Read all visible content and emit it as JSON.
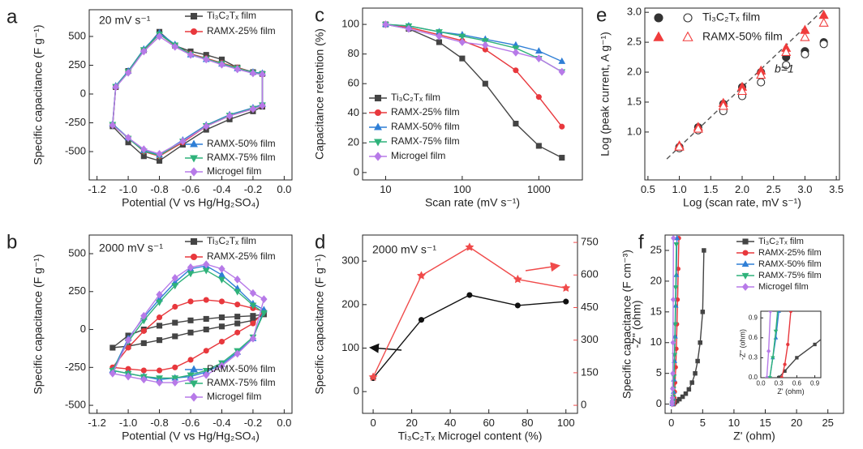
{
  "chart_data": [
    {
      "type": "line",
      "panel": "a",
      "closed": true,
      "annotation": "20 mV s⁻¹",
      "xlabel": "Potential (V vs Hg/Hg₂SO₄)",
      "ylabel": "Specific capacitance (F g⁻¹)",
      "xlim": [
        -1.25,
        0.05
      ],
      "ylim": [
        -746,
        732
      ],
      "xticks": [
        -1.2,
        {
          "value": -1,
          "label": "-1.0"
        },
        -0.8,
        -0.6,
        -0.4,
        -0.2,
        {
          "value": 0,
          "label": "0.0"
        }
      ],
      "yticks": [
        -500,
        -250,
        0,
        250,
        500
      ],
      "series": [
        {
          "name": "Ti₃C₂Tₓ film",
          "color": "#444444",
          "marker": "square",
          "x": [
            -1.1,
            -1.08,
            -1.0,
            -0.9,
            -0.8,
            -0.7,
            -0.6,
            -0.5,
            -0.4,
            -0.3,
            -0.2,
            -0.14,
            -0.14,
            -0.2,
            -0.35,
            -0.5,
            -0.65,
            -0.8,
            -0.9,
            -1.0
          ],
          "values": [
            -280,
            60,
            200,
            380,
            540,
            420,
            370,
            340,
            300,
            230,
            190,
            175,
            -110,
            -150,
            -220,
            -310,
            -440,
            -580,
            -540,
            -420
          ]
        },
        {
          "name": "RAMX-25% film",
          "color": "#e8383d",
          "marker": "circle",
          "x": [
            -1.1,
            -1.08,
            -1.0,
            -0.9,
            -0.8,
            -0.7,
            -0.6,
            -0.5,
            -0.4,
            -0.3,
            -0.2,
            -0.14,
            -0.14,
            -0.2,
            -0.35,
            -0.5,
            -0.65,
            -0.8,
            -0.9,
            -1.0
          ],
          "values": [
            -270,
            60,
            190,
            380,
            520,
            420,
            350,
            310,
            270,
            230,
            185,
            170,
            -100,
            -130,
            -190,
            -280,
            -420,
            -540,
            -500,
            -380
          ]
        },
        {
          "name": "RAMX-50% film",
          "color": "#2f7fd6",
          "marker": "triangle",
          "x": [
            -1.1,
            -1.08,
            -1.0,
            -0.9,
            -0.8,
            -0.7,
            -0.6,
            -0.5,
            -0.4,
            -0.3,
            -0.2,
            -0.14,
            -0.14,
            -0.2,
            -0.35,
            -0.5,
            -0.65,
            -0.8,
            -0.9,
            -1.0
          ],
          "values": [
            -260,
            70,
            200,
            390,
            530,
            430,
            340,
            300,
            260,
            220,
            190,
            180,
            -90,
            -120,
            -180,
            -270,
            -400,
            -530,
            -490,
            -380
          ]
        },
        {
          "name": "RAMX-75% film",
          "color": "#2fb27a",
          "marker": "triangle-down",
          "x": [
            -1.1,
            -1.08,
            -1.0,
            -0.9,
            -0.8,
            -0.7,
            -0.6,
            -0.5,
            -0.4,
            -0.3,
            -0.2,
            -0.14,
            -0.14,
            -0.2,
            -0.35,
            -0.5,
            -0.65,
            -0.8,
            -0.9,
            -1.0
          ],
          "values": [
            -265,
            65,
            195,
            385,
            520,
            425,
            345,
            305,
            265,
            225,
            185,
            175,
            -95,
            -125,
            -185,
            -275,
            -410,
            -535,
            -495,
            -385
          ]
        },
        {
          "name": "Microgel film",
          "color": "#b77ae8",
          "marker": "diamond",
          "x": [
            -1.1,
            -1.08,
            -1.0,
            -0.9,
            -0.8,
            -0.7,
            -0.6,
            -0.5,
            -0.4,
            -0.3,
            -0.2,
            -0.14,
            -0.14,
            -0.2,
            -0.35,
            -0.5,
            -0.65,
            -0.8,
            -0.9,
            -1.0
          ],
          "values": [
            -270,
            60,
            185,
            370,
            500,
            410,
            340,
            300,
            255,
            215,
            180,
            170,
            -100,
            -130,
            -190,
            -280,
            -410,
            -520,
            -480,
            -380
          ]
        }
      ]
    },
    {
      "type": "line",
      "panel": "b",
      "closed": true,
      "annotation": "2000 mV s⁻¹",
      "xlabel": "Potential (V vs Hg/Hg₂SO₄)",
      "ylabel": "Specific capacitance (F g⁻¹)",
      "xlim": [
        -1.25,
        0.05
      ],
      "ylim": [
        -553,
        623
      ],
      "xticks": [
        -1.2,
        {
          "value": -1,
          "label": "-1.0"
        },
        -0.8,
        -0.6,
        -0.4,
        -0.2,
        {
          "value": 0,
          "label": "0.0"
        }
      ],
      "yticks": [
        -500,
        -250,
        0,
        250,
        500
      ],
      "series": [
        {
          "name": "Ti₃C₂Tₓ film",
          "color": "#444444",
          "marker": "square",
          "x": [
            -1.1,
            -1.0,
            -0.9,
            -0.8,
            -0.7,
            -0.6,
            -0.5,
            -0.4,
            -0.3,
            -0.2,
            -0.13,
            -0.2,
            -0.3,
            -0.4,
            -0.5,
            -0.6,
            -0.7,
            -0.8,
            -0.9,
            -1.0
          ],
          "values": [
            -120,
            -40,
            0,
            25,
            45,
            60,
            70,
            80,
            85,
            90,
            100,
            60,
            40,
            20,
            0,
            -20,
            -45,
            -70,
            -90,
            -110
          ]
        },
        {
          "name": "RAMX-25% film",
          "color": "#e8383d",
          "marker": "circle",
          "x": [
            -1.1,
            -1.0,
            -0.9,
            -0.8,
            -0.7,
            -0.6,
            -0.5,
            -0.4,
            -0.3,
            -0.2,
            -0.13,
            -0.2,
            -0.3,
            -0.4,
            -0.5,
            -0.6,
            -0.7,
            -0.8,
            -0.9,
            -1.0
          ],
          "values": [
            -250,
            -120,
            -10,
            80,
            150,
            185,
            195,
            185,
            165,
            140,
            120,
            40,
            -20,
            -80,
            -140,
            -200,
            -250,
            -270,
            -270,
            -260
          ]
        },
        {
          "name": "RAMX-50% film",
          "color": "#2f7fd6",
          "marker": "triangle",
          "x": [
            -1.1,
            -1.0,
            -0.9,
            -0.8,
            -0.7,
            -0.6,
            -0.5,
            -0.4,
            -0.3,
            -0.2,
            -0.13,
            -0.2,
            -0.3,
            -0.4,
            -0.5,
            -0.6,
            -0.7,
            -0.8,
            -0.9,
            -1.0
          ],
          "values": [
            -270,
            -60,
            80,
            200,
            310,
            400,
            420,
            360,
            270,
            170,
            130,
            -60,
            -150,
            -230,
            -280,
            -310,
            -320,
            -330,
            -310,
            -290
          ]
        },
        {
          "name": "RAMX-75% film",
          "color": "#2fb27a",
          "marker": "triangle-down",
          "x": [
            -1.1,
            -1.0,
            -0.9,
            -0.8,
            -0.7,
            -0.6,
            -0.5,
            -0.4,
            -0.3,
            -0.2,
            -0.13,
            -0.2,
            -0.3,
            -0.4,
            -0.5,
            -0.6,
            -0.7,
            -0.8,
            -0.9,
            -1.0
          ],
          "values": [
            -270,
            -80,
            60,
            180,
            290,
            370,
            390,
            330,
            250,
            160,
            110,
            -50,
            -140,
            -220,
            -270,
            -300,
            -320,
            -320,
            -310,
            -290
          ]
        },
        {
          "name": "Microgel film",
          "color": "#b77ae8",
          "marker": "diamond",
          "x": [
            -1.1,
            -1.0,
            -0.9,
            -0.8,
            -0.7,
            -0.6,
            -0.5,
            -0.4,
            -0.3,
            -0.2,
            -0.13,
            -0.2,
            -0.3,
            -0.4,
            -0.5,
            -0.6,
            -0.7,
            -0.8,
            -0.9,
            -1.0
          ],
          "values": [
            -290,
            -70,
            90,
            230,
            340,
            410,
            430,
            400,
            330,
            240,
            200,
            -60,
            -160,
            -240,
            -300,
            -330,
            -350,
            -350,
            -330,
            -310
          ]
        }
      ]
    },
    {
      "type": "line",
      "panel": "c",
      "xlog": true,
      "xlabel": "Scan rate (mV s⁻¹)",
      "ylabel": "Capacitance retention (%)",
      "xlim": [
        5,
        3700
      ],
      "ylim": [
        -5,
        111
      ],
      "xticks": [
        10,
        100,
        1000
      ],
      "yticks": [
        0,
        20,
        40,
        60,
        80,
        100
      ],
      "x": [
        10,
        20,
        50,
        100,
        200,
        500,
        1000,
        2000
      ],
      "series": [
        {
          "name": "Ti₃C₂Tₓ film",
          "color": "#444444",
          "marker": "square",
          "values": [
            100,
            97,
            88,
            77,
            60,
            33,
            18,
            10
          ]
        },
        {
          "name": "RAMX-25% film",
          "color": "#e8383d",
          "marker": "circle",
          "values": [
            100,
            98,
            93,
            89,
            83,
            69,
            51,
            31
          ]
        },
        {
          "name": "RAMX-50% film",
          "color": "#2f7fd6",
          "marker": "triangle",
          "values": [
            100,
            99,
            95,
            93,
            90,
            86,
            82,
            75
          ]
        },
        {
          "name": "RAMX-75% film",
          "color": "#2fb27a",
          "marker": "triangle-down",
          "values": [
            100,
            99,
            95,
            92,
            89,
            84,
            77,
            68
          ]
        },
        {
          "name": "Microgel film",
          "color": "#b77ae8",
          "marker": "diamond",
          "values": [
            100,
            97,
            92,
            88,
            86,
            81,
            77,
            68
          ]
        }
      ]
    },
    {
      "type": "line",
      "panel": "d",
      "annotation": "2000 mV s⁻¹",
      "xlabel": "Ti₃C₂Tₓ Microgel content (%)",
      "ylabel": "Specific capacitance (F g⁻¹)",
      "y2label": "Specific capacitance (F cm⁻³)",
      "y2color": "#f04b4b",
      "xlim": [
        -5.5,
        106
      ],
      "ylim": [
        -50,
        360
      ],
      "y2lim": [
        -37,
        784
      ],
      "xticks": [
        0,
        20,
        40,
        60,
        80,
        100
      ],
      "yticks": [
        0,
        100,
        200,
        300
      ],
      "y2ticks": [
        0,
        150,
        300,
        450,
        600,
        750
      ],
      "x": [
        0,
        25,
        50,
        75,
        100
      ],
      "series": [
        {
          "color": "#111111",
          "marker": "circle",
          "values": [
            31,
            165,
            222,
            198,
            207
          ]
        },
        {
          "color": "#f04b4b",
          "marker": "star",
          "axis": "y2",
          "values": [
            130,
            597,
            728,
            580,
            540
          ]
        }
      ]
    },
    {
      "type": "scatter",
      "panel": "e",
      "xlabel": "Log (scan rate, mV s⁻¹)",
      "ylabel": "Log (peak current, A g⁻¹)",
      "xlim": [
        0.45,
        3.55
      ],
      "ylim": [
        0.2,
        3.07
      ],
      "xticks": [
        0.5,
        {
          "value": 1,
          "label": "1.0"
        },
        1.5,
        {
          "value": 2,
          "label": "2.0"
        },
        2.5,
        {
          "value": 3,
          "label": "3.0"
        },
        3.5
      ],
      "yticks": [
        {
          "value": 1,
          "label": "1.0"
        },
        1.5,
        {
          "value": 2,
          "label": "2.0"
        },
        2.5,
        {
          "value": 3,
          "label": "3.0"
        }
      ],
      "x": [
        1.0,
        1.3,
        1.7,
        2.0,
        2.3,
        2.7,
        3.0,
        3.3
      ],
      "reference": {
        "label": "b=1",
        "x": [
          0.8,
          3.35
        ],
        "y": [
          0.55,
          3.1
        ]
      },
      "series": [
        {
          "name": "Ti₃C₂Tₓ film",
          "color": "#333333",
          "marker": "circle",
          "values": [
            0.75,
            1.08,
            1.47,
            1.75,
            2.0,
            2.25,
            2.35,
            2.5
          ],
          "open_values": [
            0.73,
            1.03,
            1.35,
            1.6,
            1.83,
            2.12,
            2.3,
            2.47
          ]
        },
        {
          "name": "RAMX-50% film",
          "color": "#f03c3c",
          "marker": "triangle",
          "values": [
            0.77,
            1.08,
            1.48,
            1.75,
            2.02,
            2.4,
            2.7,
            2.95
          ],
          "open_values": [
            0.75,
            1.05,
            1.43,
            1.68,
            1.95,
            2.33,
            2.58,
            2.82
          ]
        }
      ]
    },
    {
      "type": "line",
      "panel": "f",
      "xlabel": "Z' (ohm)",
      "ylabel": "-Z'' (ohm)",
      "xlim": [
        -1,
        27.5
      ],
      "ylim": [
        -1.5,
        27.5
      ],
      "xticks": [
        0,
        5,
        10,
        15,
        20,
        25
      ],
      "yticks": [
        0,
        5,
        10,
        15,
        20,
        25
      ],
      "inset": {
        "xlim": [
          0,
          1
        ],
        "ylim": [
          0,
          1
        ],
        "xlabel": "Z' (ohm)",
        "ylabel": "-Z'' (ohm)",
        "xticks": [
          {
            "value": 0,
            "label": "0.0"
          },
          0.3,
          0.6,
          0.9
        ],
        "yticks": [
          {
            "value": 0,
            "label": "0.0"
          },
          0.3,
          0.6,
          0.9
        ]
      },
      "series": [
        {
          "name": "Ti₃C₂Tₓ film",
          "color": "#444444",
          "marker": "square",
          "x": [
            0.3,
            0.4,
            0.6,
            0.9,
            1.3,
            1.8,
            2.3,
            2.8,
            3.3,
            3.8,
            4.2,
            4.6,
            5.0,
            5.2
          ],
          "values": [
            0,
            0.1,
            0.3,
            0.5,
            0.8,
            1.2,
            1.7,
            2.4,
            3.5,
            5,
            7,
            10,
            15,
            25
          ]
        },
        {
          "name": "RAMX-25% film",
          "color": "#e8383d",
          "marker": "circle",
          "x": [
            0.35,
            0.4,
            0.45,
            0.5,
            0.55,
            0.6,
            0.7,
            0.8,
            0.9,
            1.0,
            1.1,
            1.2
          ],
          "values": [
            0,
            0.2,
            0.5,
            1,
            2,
            3.5,
            6,
            9,
            13,
            17,
            22,
            27
          ]
        },
        {
          "name": "RAMX-50% film",
          "color": "#2f7fd6",
          "marker": "triangle",
          "x": [
            0.15,
            0.2,
            0.25,
            0.3,
            0.35,
            0.4,
            0.5,
            0.6,
            0.7,
            0.8,
            0.9
          ],
          "values": [
            0,
            0.3,
            0.6,
            1,
            2,
            4,
            7,
            11,
            16,
            21,
            27
          ]
        },
        {
          "name": "RAMX-75% film",
          "color": "#2fb27a",
          "marker": "triangle-down",
          "x": [
            0.15,
            0.2,
            0.25,
            0.3,
            0.35,
            0.4,
            0.5,
            0.6,
            0.7,
            0.8
          ],
          "values": [
            0,
            0.3,
            0.7,
            1.2,
            2.5,
            4.5,
            8,
            13,
            19,
            26
          ]
        },
        {
          "name": "Microgel film",
          "color": "#b77ae8",
          "marker": "diamond",
          "x": [
            0.1,
            0.13,
            0.16,
            0.2,
            0.23,
            0.26,
            0.3,
            0.33
          ],
          "values": [
            0,
            0.4,
            1,
            2.5,
            5,
            10,
            17,
            27
          ]
        }
      ]
    }
  ]
}
